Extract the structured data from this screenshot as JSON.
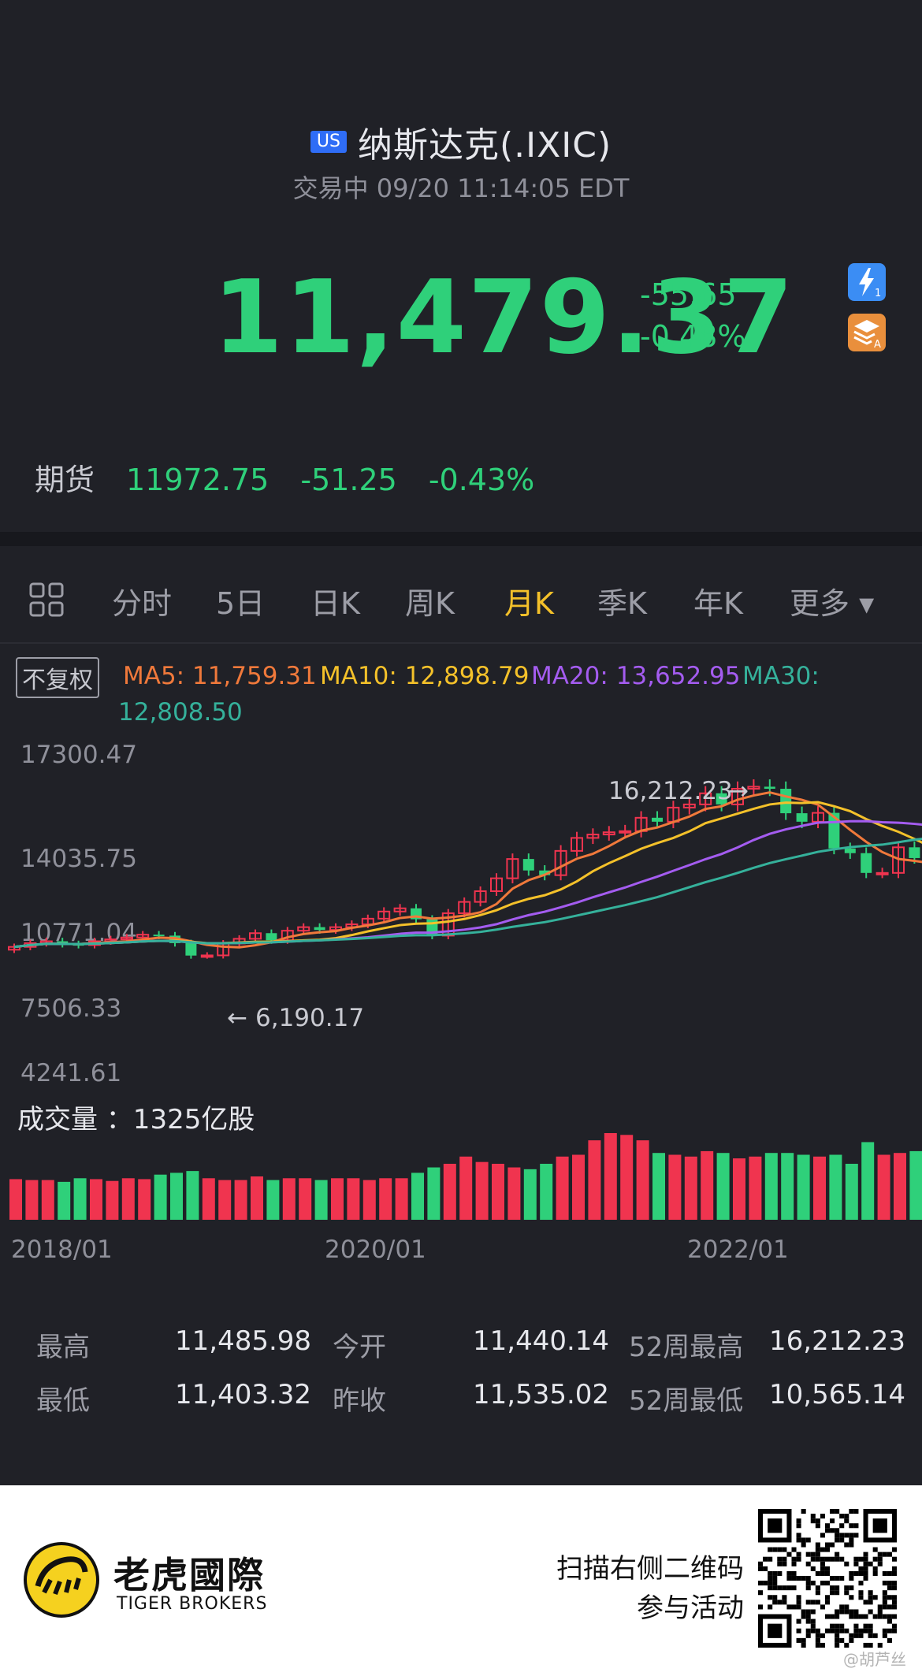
{
  "header": {
    "market_badge": "US",
    "title": "纳斯达克(.IXIC)",
    "status": "交易中 09/20 11:14:05 EDT",
    "price": "11,479.37",
    "change": "-55.65",
    "change_pct": "-0.48%",
    "icons": [
      "bolt-icon",
      "layers-icon"
    ],
    "colors": {
      "down": "#2fd07a",
      "up": "#f0344f"
    }
  },
  "futures": {
    "label": "期货",
    "price": "11972.75",
    "change": "-51.25",
    "change_pct": "-0.43%"
  },
  "tabs": [
    {
      "label": "分时"
    },
    {
      "label": "5日"
    },
    {
      "label": "日K"
    },
    {
      "label": "周K"
    },
    {
      "label": "月K",
      "active": true
    },
    {
      "label": "季K"
    },
    {
      "label": "年K"
    },
    {
      "label": "更多 ▾"
    }
  ],
  "chart": {
    "adjust_label": "不复权",
    "ma5": "MA5: 11,759.31",
    "ma10": "MA10: 12,898.79",
    "ma20": "MA20: 13,652.95",
    "ma30_label": "MA30:",
    "ma30_value": "12,808.50",
    "y_ticks": [
      "17300.47",
      "14035.75",
      "10771.04",
      "7506.33",
      "4241.61"
    ],
    "high_marker": "16,212.23",
    "low_marker": "6,190.17",
    "volume_label": "成交量 ：1325亿股",
    "x_ticks": [
      "2018/01",
      "2020/01",
      "2022/01"
    ]
  },
  "chart_data": {
    "type": "candlestick",
    "ylim": [
      4241.61,
      17300.47
    ],
    "close": [
      7100,
      7300,
      7400,
      7250,
      7200,
      7400,
      7500,
      7600,
      7750,
      7700,
      7300,
      6640,
      6650,
      7280,
      7530,
      7830,
      7450,
      7960,
      8150,
      8000,
      8150,
      8300,
      8600,
      8980,
      9150,
      8570,
      7700,
      8890,
      9490,
      10060,
      10745,
      11770,
      11160,
      10910,
      12200,
      12890,
      13070,
      13190,
      13250,
      13960,
      13750,
      14500,
      14670,
      15260,
      14670,
      15500,
      15610,
      15500,
      14200,
      13750,
      14220,
      12330,
      12080,
      11030,
      11030,
      12390,
      11820,
      11480
    ],
    "ma_lines": [
      "MA5",
      "MA10",
      "MA20",
      "MA30"
    ],
    "volume": [
      45,
      44,
      44,
      42,
      46,
      45,
      43,
      46,
      45,
      50,
      52,
      54,
      46,
      44,
      44,
      48,
      44,
      46,
      46,
      44,
      46,
      46,
      44,
      46,
      46,
      52,
      58,
      62,
      70,
      64,
      62,
      58,
      56,
      62,
      70,
      72,
      88,
      96,
      94,
      88,
      74,
      72,
      70,
      76,
      74,
      68,
      70,
      74,
      74,
      72,
      70,
      72,
      62,
      86,
      72,
      74,
      76,
      78
    ]
  },
  "stats": {
    "rows": [
      [
        {
          "label": "最高",
          "value": "11,485.98"
        },
        {
          "label": "今开",
          "value": "11,440.14"
        },
        {
          "label": "52周最高",
          "value": "16,212.23"
        }
      ],
      [
        {
          "label": "最低",
          "value": "11,403.32"
        },
        {
          "label": "昨收",
          "value": "11,535.02"
        },
        {
          "label": "52周最低",
          "value": "10,565.14"
        }
      ]
    ]
  },
  "footer": {
    "brand_cn": "老虎國際",
    "brand_en": "TIGER BROKERS",
    "scan_line1": "扫描右侧二维码",
    "scan_line2": "参与活动",
    "watermark": "@胡芦丝"
  }
}
